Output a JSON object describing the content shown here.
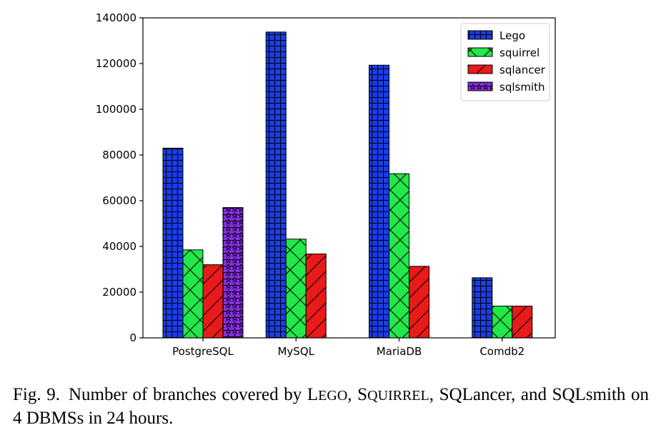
{
  "chart_data": {
    "type": "bar",
    "categories": [
      "PostgreSQL",
      "MySQL",
      "MariaDB",
      "Comdb2"
    ],
    "series": [
      {
        "name": "Lego",
        "values": [
          83000,
          133800,
          119300,
          26300
        ],
        "color": "#1a3de8",
        "hatch": "grid"
      },
      {
        "name": "squirrel",
        "values": [
          38500,
          43200,
          71800,
          13900
        ],
        "color": "#22e84a",
        "hatch": "cross"
      },
      {
        "name": "sqlancer",
        "values": [
          32000,
          36700,
          31300,
          13900
        ],
        "color": "#e81a1a",
        "hatch": "diag"
      },
      {
        "name": "sqlsmith",
        "values": [
          57000,
          null,
          null,
          null
        ],
        "color": "#8a2ee8",
        "hatch": "star"
      }
    ],
    "yticks": [
      0,
      20000,
      40000,
      60000,
      80000,
      100000,
      120000,
      140000
    ],
    "ylim": [
      0,
      140000
    ],
    "grid": false,
    "legend": "top-right",
    "title": "",
    "xlabel": "",
    "ylabel": ""
  },
  "caption": {
    "label": "Fig. 9.",
    "parts": [
      "Number of branches covered by ",
      "L",
      "EGO",
      ", ",
      "S",
      "QUIRREL",
      ", SQLancer, and SQLsmith on 4 DBMSs in 24 hours."
    ]
  }
}
